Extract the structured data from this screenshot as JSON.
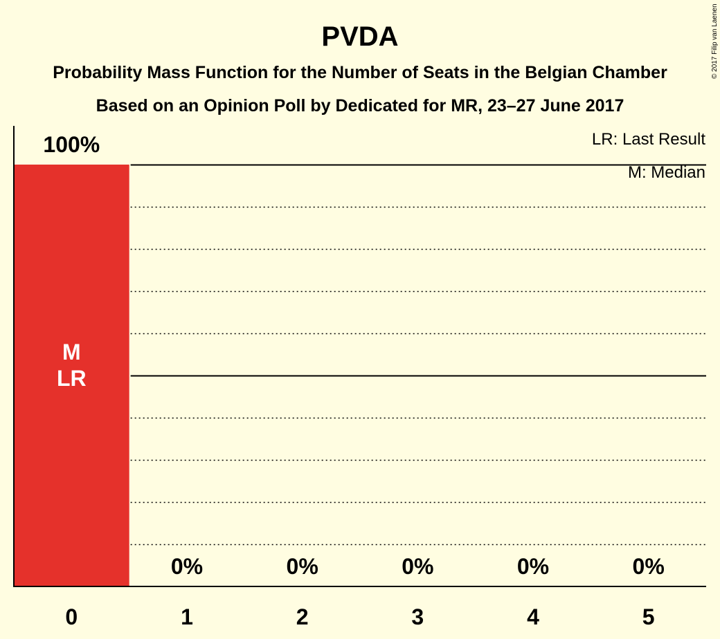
{
  "chart_data": {
    "type": "bar",
    "title": "PVDA",
    "subtitle_line1": "Probability Mass Function for the Number of Seats in the Belgian Chamber",
    "subtitle_line2": "Based on an Opinion Poll by Dedicated for MR, 23–27 June 2017",
    "categories": [
      "0",
      "1",
      "2",
      "3",
      "4",
      "5"
    ],
    "values": [
      100,
      0,
      0,
      0,
      0,
      0
    ],
    "value_labels": [
      "100%",
      "0%",
      "0%",
      "0%",
      "0%",
      "0%"
    ],
    "bar_markers": {
      "category_index": 0,
      "lines": [
        "M",
        "LR"
      ]
    },
    "ylim": [
      0,
      100
    ],
    "grid": true,
    "legend": {
      "placement": "top-right",
      "entries": [
        "LR: Last Result",
        "M: Median"
      ]
    },
    "bar_color": "#E5312B",
    "background_color": "#FFFDE1",
    "copyright": "© 2017 Filip van Laenen"
  }
}
